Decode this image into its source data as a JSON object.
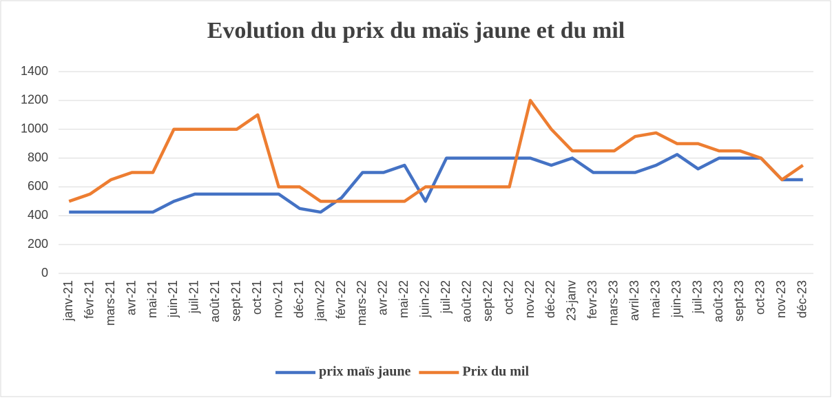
{
  "chart_data": {
    "type": "line",
    "title": "Evolution du prix du maïs jaune et du mil",
    "categories": [
      "janv-21",
      "févr-21",
      "mars-21",
      "avr-21",
      "mai-21",
      "juin-21",
      "juil-21",
      "août-21",
      "sept-21",
      "oct-21",
      "nov-21",
      "déc-21",
      "janv-22",
      "févr-22",
      "mars-22",
      "avr-22",
      "mai-22",
      "juin-22",
      "juil-22",
      "août-22",
      "sept-22",
      "oct-22",
      "nov-22",
      "déc-22",
      "23-janv",
      "fevr-23",
      "mars-23",
      "avril-23",
      "mai-23",
      "juin-23",
      "juil-23",
      "août-23",
      "sept-23",
      "oct-23",
      "nov-23",
      "déc-23"
    ],
    "series": [
      {
        "name": "prix maïs jaune",
        "color": "#4472c4",
        "values": [
          425,
          425,
          425,
          425,
          425,
          500,
          550,
          550,
          550,
          550,
          550,
          450,
          425,
          525,
          700,
          700,
          750,
          500,
          800,
          800,
          800,
          800,
          800,
          750,
          800,
          700,
          700,
          700,
          750,
          825,
          725,
          800,
          800,
          800,
          650,
          650
        ]
      },
      {
        "name": "Prix du mil",
        "color": "#ed7d31",
        "values": [
          500,
          550,
          650,
          700,
          700,
          1000,
          1000,
          1000,
          1000,
          1100,
          600,
          600,
          500,
          500,
          500,
          500,
          500,
          600,
          600,
          600,
          600,
          600,
          1200,
          1000,
          850,
          850,
          850,
          950,
          975,
          900,
          900,
          850,
          850,
          800,
          650,
          750
        ]
      }
    ],
    "ylim": [
      0,
      1400
    ],
    "yticks": [
      0,
      200,
      400,
      600,
      800,
      1000,
      1200,
      1400
    ],
    "grid": true,
    "legend": "bottom"
  }
}
